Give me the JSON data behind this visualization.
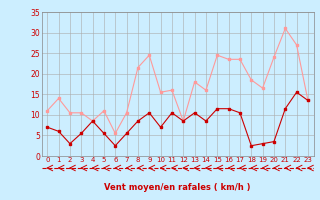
{
  "x": [
    0,
    1,
    2,
    3,
    4,
    5,
    6,
    7,
    8,
    9,
    10,
    11,
    12,
    13,
    14,
    15,
    16,
    17,
    18,
    19,
    20,
    21,
    22,
    23
  ],
  "rafales": [
    11,
    14,
    10.5,
    10.5,
    8.5,
    11,
    5.5,
    10.5,
    21.5,
    24.5,
    15.5,
    16,
    8.5,
    18,
    16,
    24.5,
    23.5,
    23.5,
    18.5,
    16.5,
    24,
    31,
    27,
    13.5
  ],
  "moyen": [
    7,
    6,
    3,
    5.5,
    8.5,
    5.5,
    2.5,
    5.5,
    8.5,
    10.5,
    7,
    10.5,
    8.5,
    10.5,
    8.5,
    11.5,
    11.5,
    10.5,
    2.5,
    3,
    3.5,
    11.5,
    15.5,
    13.5
  ],
  "ylim_main": [
    0,
    35
  ],
  "yticks": [
    0,
    5,
    10,
    15,
    20,
    25,
    30,
    35
  ],
  "xticks": [
    0,
    1,
    2,
    3,
    4,
    5,
    6,
    7,
    8,
    9,
    10,
    11,
    12,
    13,
    14,
    15,
    16,
    17,
    18,
    19,
    20,
    21,
    22,
    23
  ],
  "xlabel": "Vent moyen/en rafales ( km/h )",
  "bg_color": "#cceeff",
  "grid_color": "#aaaaaa",
  "rafales_color": "#ff9999",
  "moyen_color": "#cc0000",
  "arrow_color": "#cc0000",
  "ylabel_color": "#cc0000",
  "tick_color": "#cc0000"
}
